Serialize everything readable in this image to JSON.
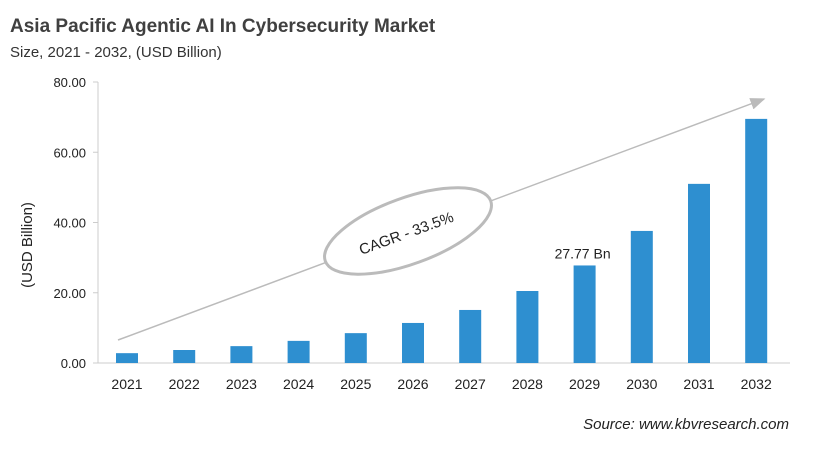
{
  "chart_data": {
    "type": "bar",
    "title": "Asia Pacific Agentic AI In Cybersecurity Market",
    "subtitle": "Size, 2021 - 2032, (USD Billion)",
    "xlabel": "",
    "ylabel": "(USD Billion)",
    "ylim": [
      0,
      80
    ],
    "yticks": [
      "0.00",
      "20.00",
      "40.00",
      "60.00",
      "80.00"
    ],
    "ytick_values": [
      0,
      20,
      40,
      60,
      80
    ],
    "categories": [
      "2021",
      "2022",
      "2023",
      "2024",
      "2025",
      "2026",
      "2027",
      "2028",
      "2029",
      "2030",
      "2031",
      "2032"
    ],
    "values": [
      2.8,
      3.7,
      4.8,
      6.3,
      8.5,
      11.4,
      15.1,
      20.5,
      27.77,
      37.6,
      51.0,
      69.5
    ],
    "bar_color": "#2e8fd0",
    "data_label": {
      "category": "2029",
      "text": "27.77 Bn"
    },
    "annotation": "CAGR - 33.5%",
    "grid": false
  },
  "source": "Source: www.kbvresearch.com"
}
